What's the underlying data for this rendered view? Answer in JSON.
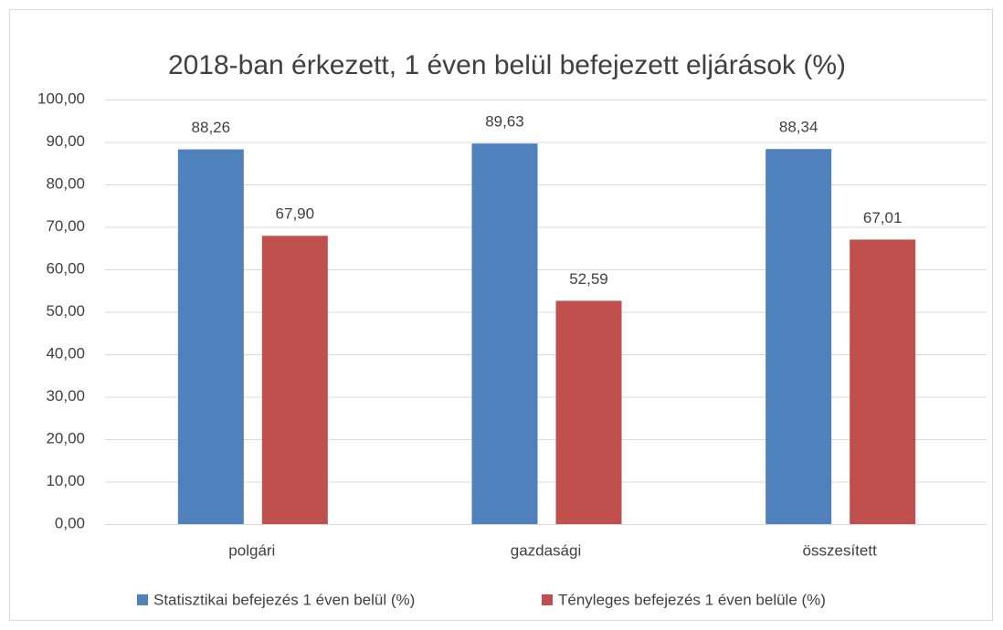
{
  "chart_data": {
    "type": "bar",
    "title": "2018-ban érkezett, 1 éven belül befejezett eljárások (%)",
    "categories": [
      "polgári",
      "gazdasági",
      "összesített"
    ],
    "series": [
      {
        "name": "Statisztikai befejezés 1 éven belül (%)",
        "color": "#4f81bd",
        "values": [
          88.26,
          89.63,
          88.34
        ],
        "value_labels": [
          "88,26",
          "89,63",
          "88,34"
        ]
      },
      {
        "name": "Tényleges befejezés 1 éven belüle (%)",
        "color": "#c0504d",
        "values": [
          67.9,
          52.59,
          67.01
        ],
        "value_labels": [
          "67,90",
          "52,59",
          "67,01"
        ]
      }
    ],
    "ylim": [
      0,
      100
    ],
    "yticks": [
      {
        "value": 0,
        "label": "0,00"
      },
      {
        "value": 10,
        "label": "10,00"
      },
      {
        "value": 20,
        "label": "20,00"
      },
      {
        "value": 30,
        "label": "30,00"
      },
      {
        "value": 40,
        "label": "40,00"
      },
      {
        "value": 50,
        "label": "50,00"
      },
      {
        "value": 60,
        "label": "60,00"
      },
      {
        "value": 70,
        "label": "70,00"
      },
      {
        "value": 80,
        "label": "80,00"
      },
      {
        "value": 90,
        "label": "90,00"
      },
      {
        "value": 100,
        "label": "100,00"
      }
    ],
    "grid": true,
    "legend": "bottom"
  }
}
